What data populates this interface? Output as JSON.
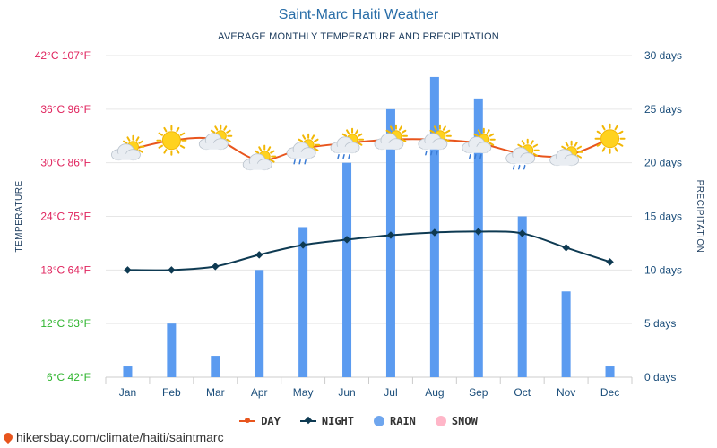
{
  "header": {
    "title": "Saint-Marc Haiti Weather",
    "subtitle": "AVERAGE MONTHLY TEMPERATURE AND PRECIPITATION"
  },
  "legend": {
    "day": "DAY",
    "night": "NIGHT",
    "rain": "RAIN",
    "snow": "SNOW"
  },
  "source": "hikersbay.com/climate/haiti/saintmarc",
  "colors": {
    "day": "#e8551d",
    "night": "#0e3a52",
    "rain": "#5b9bf0",
    "snow": "#ffb6c8",
    "right_axis": "#1a4d7a"
  },
  "chart_data": {
    "type": "bar",
    "categories": [
      "Jan",
      "Feb",
      "Mar",
      "Apr",
      "May",
      "Jun",
      "Jul",
      "Aug",
      "Sep",
      "Oct",
      "Nov",
      "Dec"
    ],
    "series": [
      {
        "name": "DAY",
        "type": "line",
        "unit": "°C",
        "values": [
          31.4,
          32.5,
          32.6,
          30.3,
          31.6,
          32.2,
          32.6,
          32.6,
          32.2,
          31.0,
          30.8,
          32.7
        ]
      },
      {
        "name": "NIGHT",
        "type": "line",
        "unit": "°C",
        "values": [
          18.0,
          18.0,
          18.4,
          19.7,
          20.8,
          21.4,
          21.9,
          22.2,
          22.3,
          22.1,
          20.5,
          18.9
        ]
      },
      {
        "name": "RAIN",
        "type": "bar",
        "unit": "days",
        "values": [
          1,
          5,
          2,
          10,
          14,
          20,
          25,
          28,
          26,
          15,
          8,
          1
        ]
      }
    ],
    "weather_icons": [
      "partly-cloudy-icon",
      "sun-icon",
      "partly-cloudy-icon",
      "partly-cloudy-icon",
      "cloud-rain-icon",
      "cloud-rain-icon",
      "partly-cloudy-icon",
      "cloud-rain-icon",
      "cloud-rain-icon",
      "cloud-rain-icon",
      "partly-cloudy-icon",
      "sun-icon"
    ],
    "left_axis": {
      "label": "TEMPERATURE",
      "ylim": [
        6,
        42
      ],
      "ticks": [
        {
          "value": 42,
          "label": "42°C 107°F",
          "color": "#e0245e"
        },
        {
          "value": 36,
          "label": "36°C 96°F",
          "color": "#e0245e"
        },
        {
          "value": 30,
          "label": "30°C 86°F",
          "color": "#e0245e"
        },
        {
          "value": 24,
          "label": "24°C 75°F",
          "color": "#e0245e"
        },
        {
          "value": 18,
          "label": "18°C 64°F",
          "color": "#e0245e"
        },
        {
          "value": 12,
          "label": "12°C 53°F",
          "color": "#2fb52f"
        },
        {
          "value": 6,
          "label": "6°C 42°F",
          "color": "#2fb52f"
        }
      ]
    },
    "right_axis": {
      "label": "PRECIPITATION",
      "ylim": [
        0,
        30
      ],
      "ticks": [
        {
          "value": 30,
          "label": "30 days"
        },
        {
          "value": 25,
          "label": "25 days"
        },
        {
          "value": 20,
          "label": "20 days"
        },
        {
          "value": 15,
          "label": "15 days"
        },
        {
          "value": 10,
          "label": "10 days"
        },
        {
          "value": 5,
          "label": "5 days"
        },
        {
          "value": 0,
          "label": "0 days"
        }
      ]
    },
    "grid": true
  }
}
